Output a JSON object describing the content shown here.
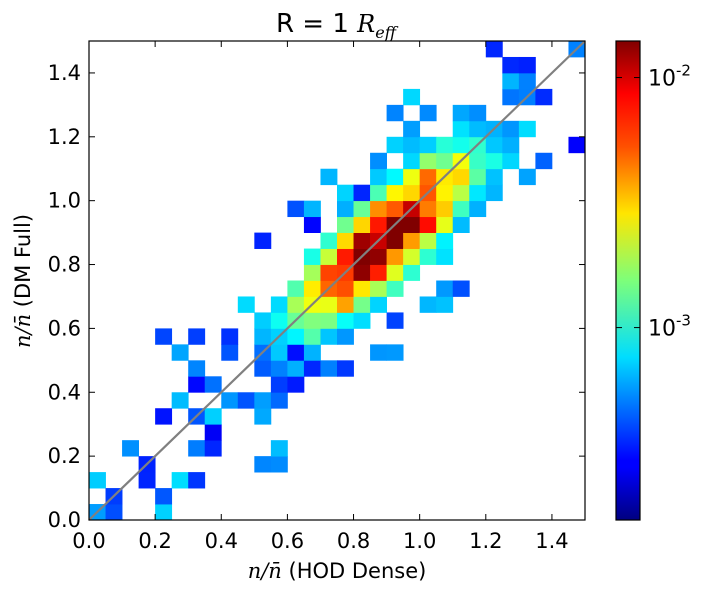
{
  "chart_data": {
    "type": "heatmap",
    "title": "R = 1",
    "title_math": "R",
    "title_math_sub": "eff",
    "xlabel": {
      "math": "n/n̄",
      "text": "(HOD Dense)"
    },
    "ylabel": {
      "math": "n/n̄",
      "text": "(DM Full)"
    },
    "xlim": [
      0.0,
      1.5
    ],
    "ylim": [
      0.0,
      1.5
    ],
    "x_ticks": [
      0.0,
      0.2,
      0.4,
      0.6,
      0.8,
      1.0,
      1.2,
      1.4
    ],
    "y_ticks": [
      0.0,
      0.2,
      0.4,
      0.6,
      0.8,
      1.0,
      1.2,
      1.4
    ],
    "x_tick_labels": [
      "0.0",
      "0.2",
      "0.4",
      "0.6",
      "0.8",
      "1.0",
      "1.2",
      "1.4"
    ],
    "y_tick_labels": [
      "0.0",
      "0.2",
      "0.4",
      "0.6",
      "0.8",
      "1.0",
      "1.2",
      "1.4"
    ],
    "bin_width": 0.05,
    "colorbar": {
      "scale": "log",
      "colormap": "jet",
      "vmin": 0.00017,
      "vmax": 0.014,
      "tick_labels": [
        {
          "base": "10",
          "exp": "-2",
          "value": 0.01
        },
        {
          "base": "10",
          "exp": "-3",
          "value": 0.001
        }
      ]
    },
    "diagonal_line": {
      "from": [
        0.0,
        0.0
      ],
      "to": [
        1.5,
        1.5
      ],
      "color": "#808080"
    },
    "model": {
      "description_values": {
        "center": [
          0.9,
          0.88
        ],
        "sigma_along": 0.24,
        "sigma_across": 0.075,
        "peak_level": 1.0,
        "threshold": 0.12
      },
      "levels_note": "cell level in [0,1] maps to log-scaled density between vmin and vmax"
    }
  }
}
